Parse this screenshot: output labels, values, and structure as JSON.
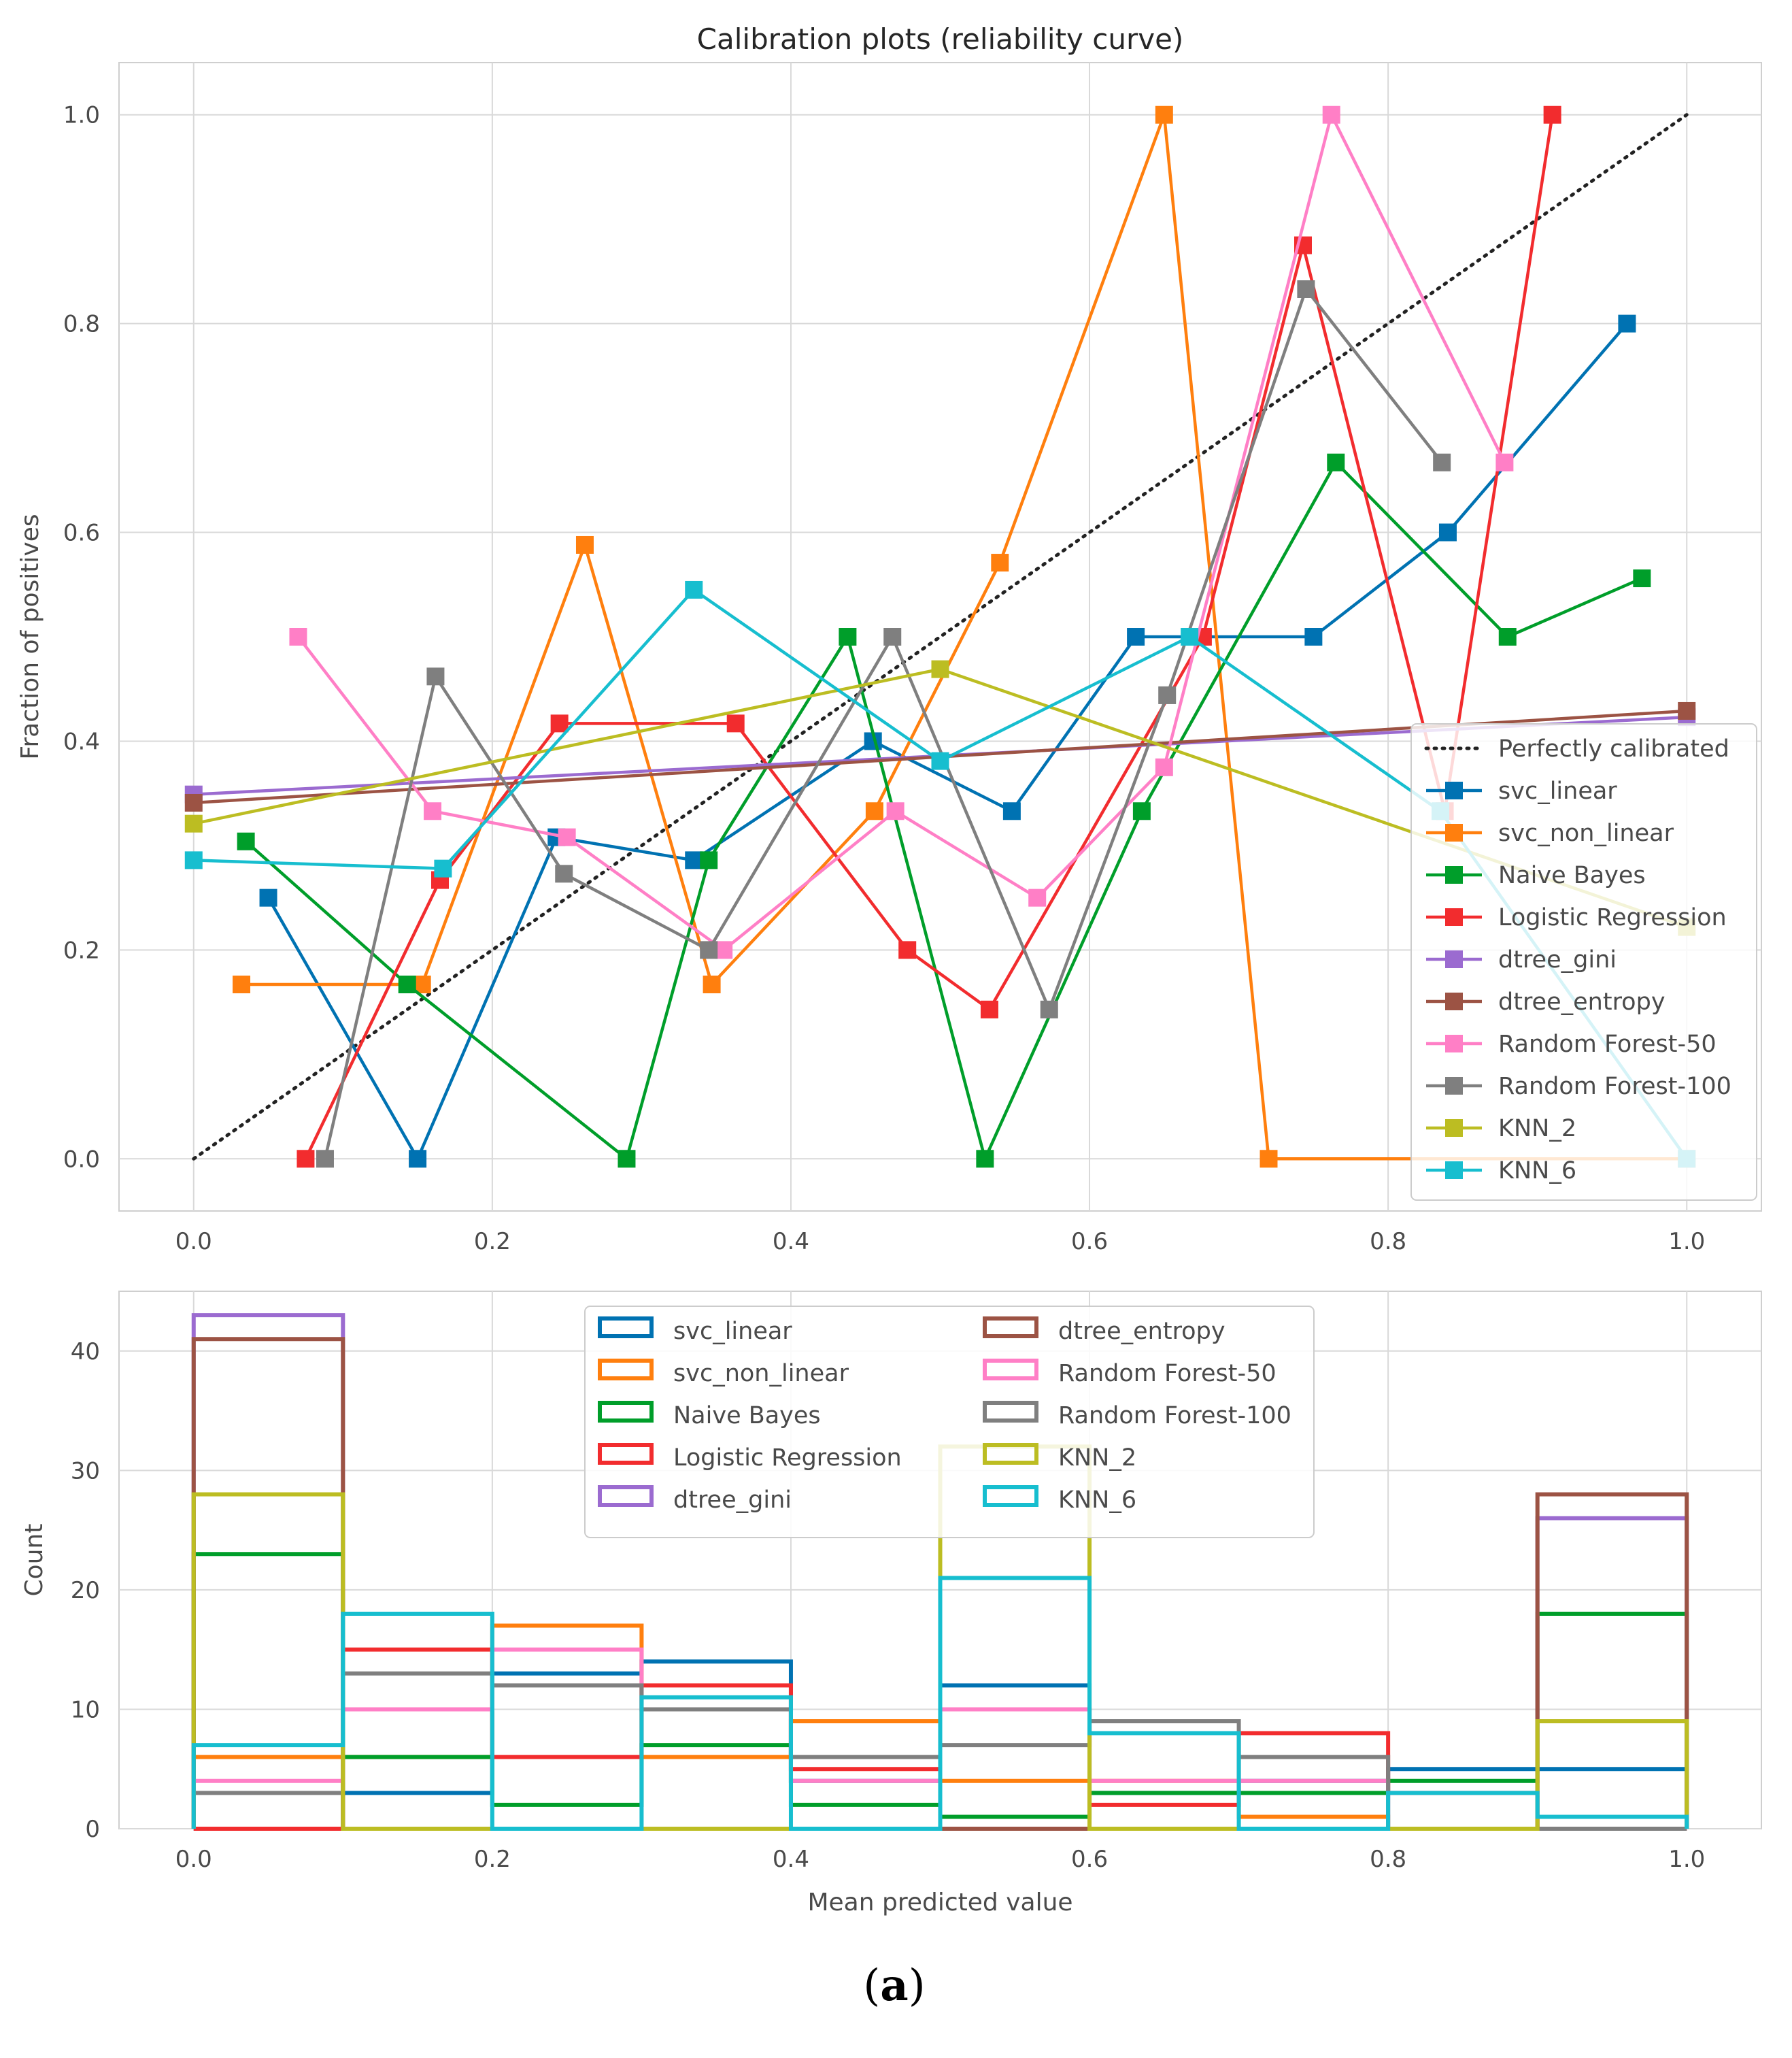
{
  "caption": {
    "open": "(",
    "label": "a",
    "close": ")"
  },
  "colors": {
    "background": "#ffffff",
    "grid": "#d9d9d9",
    "axes_border": "#cfcfcf",
    "diag": "#222222"
  },
  "chart_data": [
    {
      "type": "line",
      "title": "Calibration plots  (reliability curve)",
      "xlabel": "",
      "ylabel": "Fraction of positives",
      "xlim": [
        -0.05,
        1.05
      ],
      "ylim": [
        -0.05,
        1.05
      ],
      "xticks": [
        0.0,
        0.2,
        0.4,
        0.6,
        0.8,
        1.0
      ],
      "xtick_labels": [
        "0.0",
        "0.2",
        "0.4",
        "0.6",
        "0.8",
        "1.0"
      ],
      "yticks": [
        0.0,
        0.2,
        0.4,
        0.6,
        0.8,
        1.0
      ],
      "ytick_labels": [
        "0.0",
        "0.2",
        "0.4",
        "0.6",
        "0.8",
        "1.0"
      ],
      "grid": true,
      "legend_position": "lower-right",
      "reference": {
        "name": "Perfectly calibrated",
        "x": [
          0,
          1
        ],
        "y": [
          0,
          1
        ],
        "style": "dotted",
        "color": "#222222"
      },
      "series": [
        {
          "name": "svc_linear",
          "color": "#0072b2",
          "x": [
            0.05,
            0.15,
            0.243,
            0.335,
            0.455,
            0.548,
            0.631,
            0.75,
            0.84,
            0.96
          ],
          "y": [
            0.25,
            0.0,
            0.308,
            0.286,
            0.4,
            0.333,
            0.5,
            0.5,
            0.6,
            0.8
          ]
        },
        {
          "name": "svc_non_linear",
          "color": "#ff7f0e",
          "x": [
            0.032,
            0.153,
            0.262,
            0.347,
            0.456,
            0.54,
            0.65,
            0.72,
            1.0
          ],
          "y": [
            0.167,
            0.167,
            0.588,
            0.167,
            0.333,
            0.571,
            1.0,
            0.0,
            0.0
          ]
        },
        {
          "name": "Naive Bayes",
          "color": "#009e2a",
          "x": [
            0.035,
            0.143,
            0.29,
            0.345,
            0.438,
            0.53,
            0.635,
            0.765,
            0.88,
            0.97
          ],
          "y": [
            0.304,
            0.167,
            0.0,
            0.286,
            0.5,
            0.0,
            0.333,
            0.667,
            0.5,
            0.556
          ]
        },
        {
          "name": "Logistic Regression",
          "color": "#f22c2e",
          "x": [
            0.075,
            0.165,
            0.245,
            0.363,
            0.478,
            0.533,
            0.676,
            0.743,
            0.838,
            0.91
          ],
          "y": [
            0.0,
            0.267,
            0.417,
            0.417,
            0.2,
            0.143,
            0.5,
            0.875,
            0.333,
            1.0
          ]
        },
        {
          "name": "dtree_gini",
          "color": "#9b6bd0",
          "x": [
            0.0,
            1.0
          ],
          "y": [
            0.349,
            0.423
          ]
        },
        {
          "name": "dtree_entropy",
          "color": "#9c5344",
          "x": [
            0.0,
            1.0
          ],
          "y": [
            0.341,
            0.429
          ]
        },
        {
          "name": "Random Forest-50",
          "color": "#ff7fc6",
          "x": [
            0.07,
            0.16,
            0.25,
            0.355,
            0.47,
            0.565,
            0.65,
            0.762,
            0.878
          ],
          "y": [
            0.5,
            0.333,
            0.308,
            0.2,
            0.333,
            0.25,
            0.375,
            1.0,
            0.667
          ]
        },
        {
          "name": "Random Forest-100",
          "color": "#7f7f7f",
          "x": [
            0.088,
            0.162,
            0.248,
            0.345,
            0.468,
            0.573,
            0.652,
            0.745,
            0.836
          ],
          "y": [
            0.0,
            0.462,
            0.273,
            0.2,
            0.5,
            0.143,
            0.444,
            0.833,
            0.667
          ]
        },
        {
          "name": "KNN_2",
          "color": "#bcbd22",
          "x": [
            0.0,
            0.5,
            1.0
          ],
          "y": [
            0.321,
            0.469,
            0.222
          ]
        },
        {
          "name": "KNN_6",
          "color": "#17becf",
          "x": [
            0.0,
            0.167,
            0.335,
            0.5,
            0.667,
            0.835,
            1.0
          ],
          "y": [
            0.286,
            0.278,
            0.545,
            0.381,
            0.5,
            0.333,
            0.0
          ]
        }
      ]
    },
    {
      "type": "histogram",
      "title": "",
      "xlabel": "Mean predicted value",
      "ylabel": "Count",
      "xlim": [
        -0.05,
        1.05
      ],
      "ylim": [
        0,
        45
      ],
      "xticks": [
        0.0,
        0.2,
        0.4,
        0.6,
        0.8,
        1.0
      ],
      "xtick_labels": [
        "0.0",
        "0.2",
        "0.4",
        "0.6",
        "0.8",
        "1.0"
      ],
      "yticks": [
        0,
        10,
        20,
        30,
        40
      ],
      "ytick_labels": [
        "0",
        "10",
        "20",
        "30",
        "40"
      ],
      "grid": true,
      "legend_position": "upper-center",
      "legend_columns": 2,
      "bins": [
        0.0,
        0.1,
        0.2,
        0.3,
        0.4,
        0.5,
        0.6,
        0.7,
        0.8,
        0.9,
        1.0
      ],
      "series": [
        {
          "name": "svc_linear",
          "color": "#0072b2",
          "counts": [
            0,
            3,
            13,
            14,
            4,
            12,
            3,
            4,
            5,
            5
          ]
        },
        {
          "name": "svc_non_linear",
          "color": "#ff7f0e",
          "counts": [
            6,
            6,
            17,
            6,
            9,
            4,
            4,
            1,
            0,
            0
          ]
        },
        {
          "name": "Naive Bayes",
          "color": "#009e2a",
          "counts": [
            23,
            6,
            2,
            7,
            2,
            1,
            3,
            3,
            4,
            18
          ]
        },
        {
          "name": "Logistic Regression",
          "color": "#f22c2e",
          "counts": [
            0,
            15,
            6,
            12,
            5,
            10,
            2,
            8,
            3,
            0
          ]
        },
        {
          "name": "dtree_gini",
          "color": "#9b6bd0",
          "counts": [
            43,
            0,
            0,
            0,
            0,
            0,
            0,
            0,
            0,
            26
          ]
        },
        {
          "name": "dtree_entropy",
          "color": "#9c5344",
          "counts": [
            41,
            0,
            0,
            0,
            0,
            0,
            0,
            0,
            0,
            28
          ]
        },
        {
          "name": "Random Forest-50",
          "color": "#ff7fc6",
          "counts": [
            4,
            10,
            15,
            10,
            4,
            10,
            4,
            4,
            0,
            0
          ]
        },
        {
          "name": "Random Forest-100",
          "color": "#7f7f7f",
          "counts": [
            3,
            13,
            12,
            10,
            6,
            7,
            9,
            6,
            0,
            0
          ]
        },
        {
          "name": "KNN_2",
          "color": "#bcbd22",
          "counts": [
            28,
            0,
            0,
            0,
            0,
            32,
            0,
            0,
            0,
            9
          ]
        },
        {
          "name": "KNN_6",
          "color": "#17becf",
          "counts": [
            7,
            18,
            0,
            11,
            0,
            21,
            8,
            0,
            3,
            1
          ]
        }
      ]
    }
  ]
}
